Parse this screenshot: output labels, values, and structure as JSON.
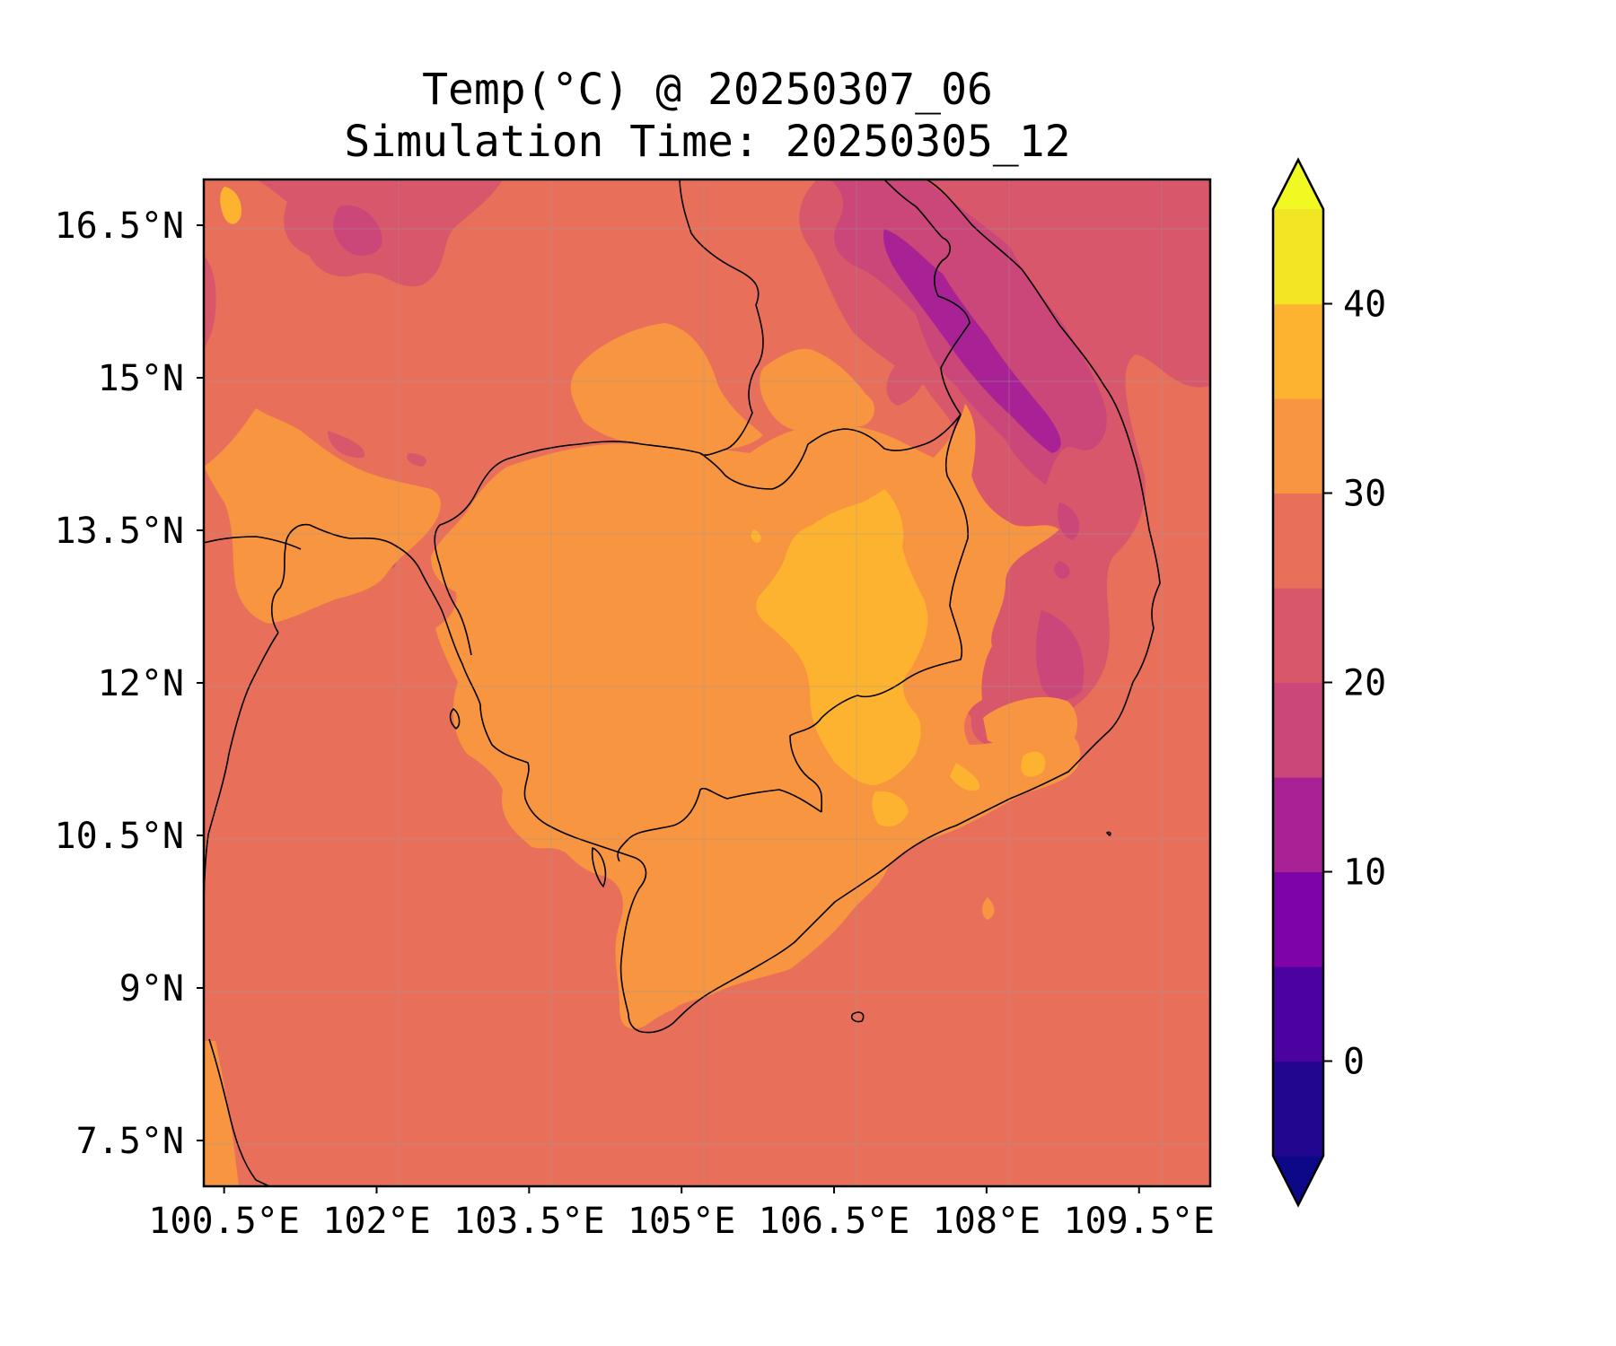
{
  "title": {
    "line1": "Temp(°C) @ 20250307_06",
    "line2": "Simulation Time: 20250305_12"
  },
  "map": {
    "lon_range": [
      100.3,
      110.2
    ],
    "lat_range": [
      7.05,
      16.95
    ],
    "lon_ticks": [
      {
        "value": 100.5,
        "label": "100.5°E"
      },
      {
        "value": 102.0,
        "label": "102°E"
      },
      {
        "value": 103.5,
        "label": "103.5°E"
      },
      {
        "value": 105.0,
        "label": "105°E"
      },
      {
        "value": 106.5,
        "label": "106.5°E"
      },
      {
        "value": 108.0,
        "label": "108°E"
      },
      {
        "value": 109.5,
        "label": "109.5°E"
      }
    ],
    "lat_ticks": [
      {
        "value": 16.5,
        "label": "16.5°N"
      },
      {
        "value": 15.0,
        "label": "15°N"
      },
      {
        "value": 13.5,
        "label": "13.5°N"
      },
      {
        "value": 12.0,
        "label": "12°N"
      },
      {
        "value": 10.5,
        "label": "10.5°N"
      },
      {
        "value": 9.0,
        "label": "9°N"
      },
      {
        "value": 7.5,
        "label": "7.5°N"
      }
    ],
    "gridlines": true,
    "variable": "Temp(°C)",
    "colormap": "plasma"
  },
  "colorbar": {
    "orientation": "vertical",
    "placement": "right",
    "extend": "both",
    "range": [
      -5,
      45
    ],
    "levels": [
      -5,
      0,
      5,
      10,
      15,
      20,
      25,
      30,
      35,
      40,
      45
    ],
    "under_color": "#0d0887",
    "over_color": "#f0f921",
    "bin_colors": [
      "#220690",
      "#4c02a1",
      "#7e03a8",
      "#a82296",
      "#cb4679",
      "#d8576b",
      "#e8705b",
      "#f89540",
      "#fdb32f",
      "#f2e524"
    ],
    "ticks": [
      {
        "value": 0,
        "label": "0"
      },
      {
        "value": 10,
        "label": "10"
      },
      {
        "value": 20,
        "label": "20"
      },
      {
        "value": 30,
        "label": "30"
      },
      {
        "value": 40,
        "label": "40"
      }
    ]
  }
}
